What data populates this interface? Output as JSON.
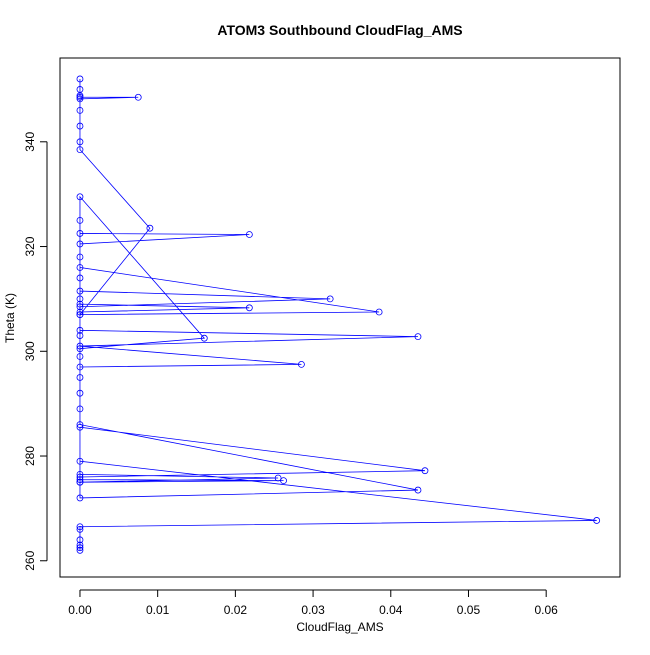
{
  "chart_data": {
    "type": "line",
    "title": "ATOM3 Southbound CloudFlag_AMS",
    "x_label": "CloudFlag_AMS",
    "y_label": "Theta (K)",
    "color": "#0000ff",
    "markers": true,
    "x": [
      0,
      0,
      0,
      0,
      0.0075,
      0,
      0,
      0,
      0,
      0,
      0.009,
      0,
      0,
      0,
      0,
      0,
      0.0218,
      0,
      0,
      0,
      0.016,
      0,
      0,
      0,
      0.0435,
      0,
      0.0285,
      0,
      0,
      0,
      0.0322,
      0,
      0,
      0.0218,
      0,
      0,
      0.0385,
      0,
      0,
      0,
      0,
      0,
      0.0435,
      0,
      0,
      0,
      0.0444,
      0,
      0,
      0.0262,
      0,
      0.0255,
      0,
      0,
      0.0665,
      0,
      0,
      0,
      0,
      0,
      0
    ],
    "values": [
      352,
      350,
      348.8,
      348.5,
      348.5,
      348.2,
      346,
      343,
      340,
      338.5,
      323.5,
      307,
      310,
      314,
      318,
      322.5,
      322.3,
      320.5,
      325,
      329.5,
      302.5,
      300.5,
      303,
      304,
      302.8,
      301,
      297.5,
      297,
      299,
      311.5,
      310,
      308.5,
      309,
      308.3,
      307.5,
      316,
      307.5,
      307,
      295,
      292,
      289,
      286,
      273.5,
      272,
      275,
      285.5,
      277.2,
      276,
      275.5,
      275.3,
      275,
      275.8,
      276.5,
      279,
      267.7,
      266.5,
      266,
      264,
      263,
      262.5,
      262
    ],
    "xlim": [
      -0.00257,
      0.0695
    ],
    "ylim": [
      256.9,
      356
    ],
    "xticks": [
      {
        "value": 0,
        "label": "0.00"
      },
      0.01,
      0.02,
      0.03,
      0.04,
      0.05,
      0.06
    ],
    "yticks": [
      260,
      280,
      300,
      320,
      340
    ]
  }
}
